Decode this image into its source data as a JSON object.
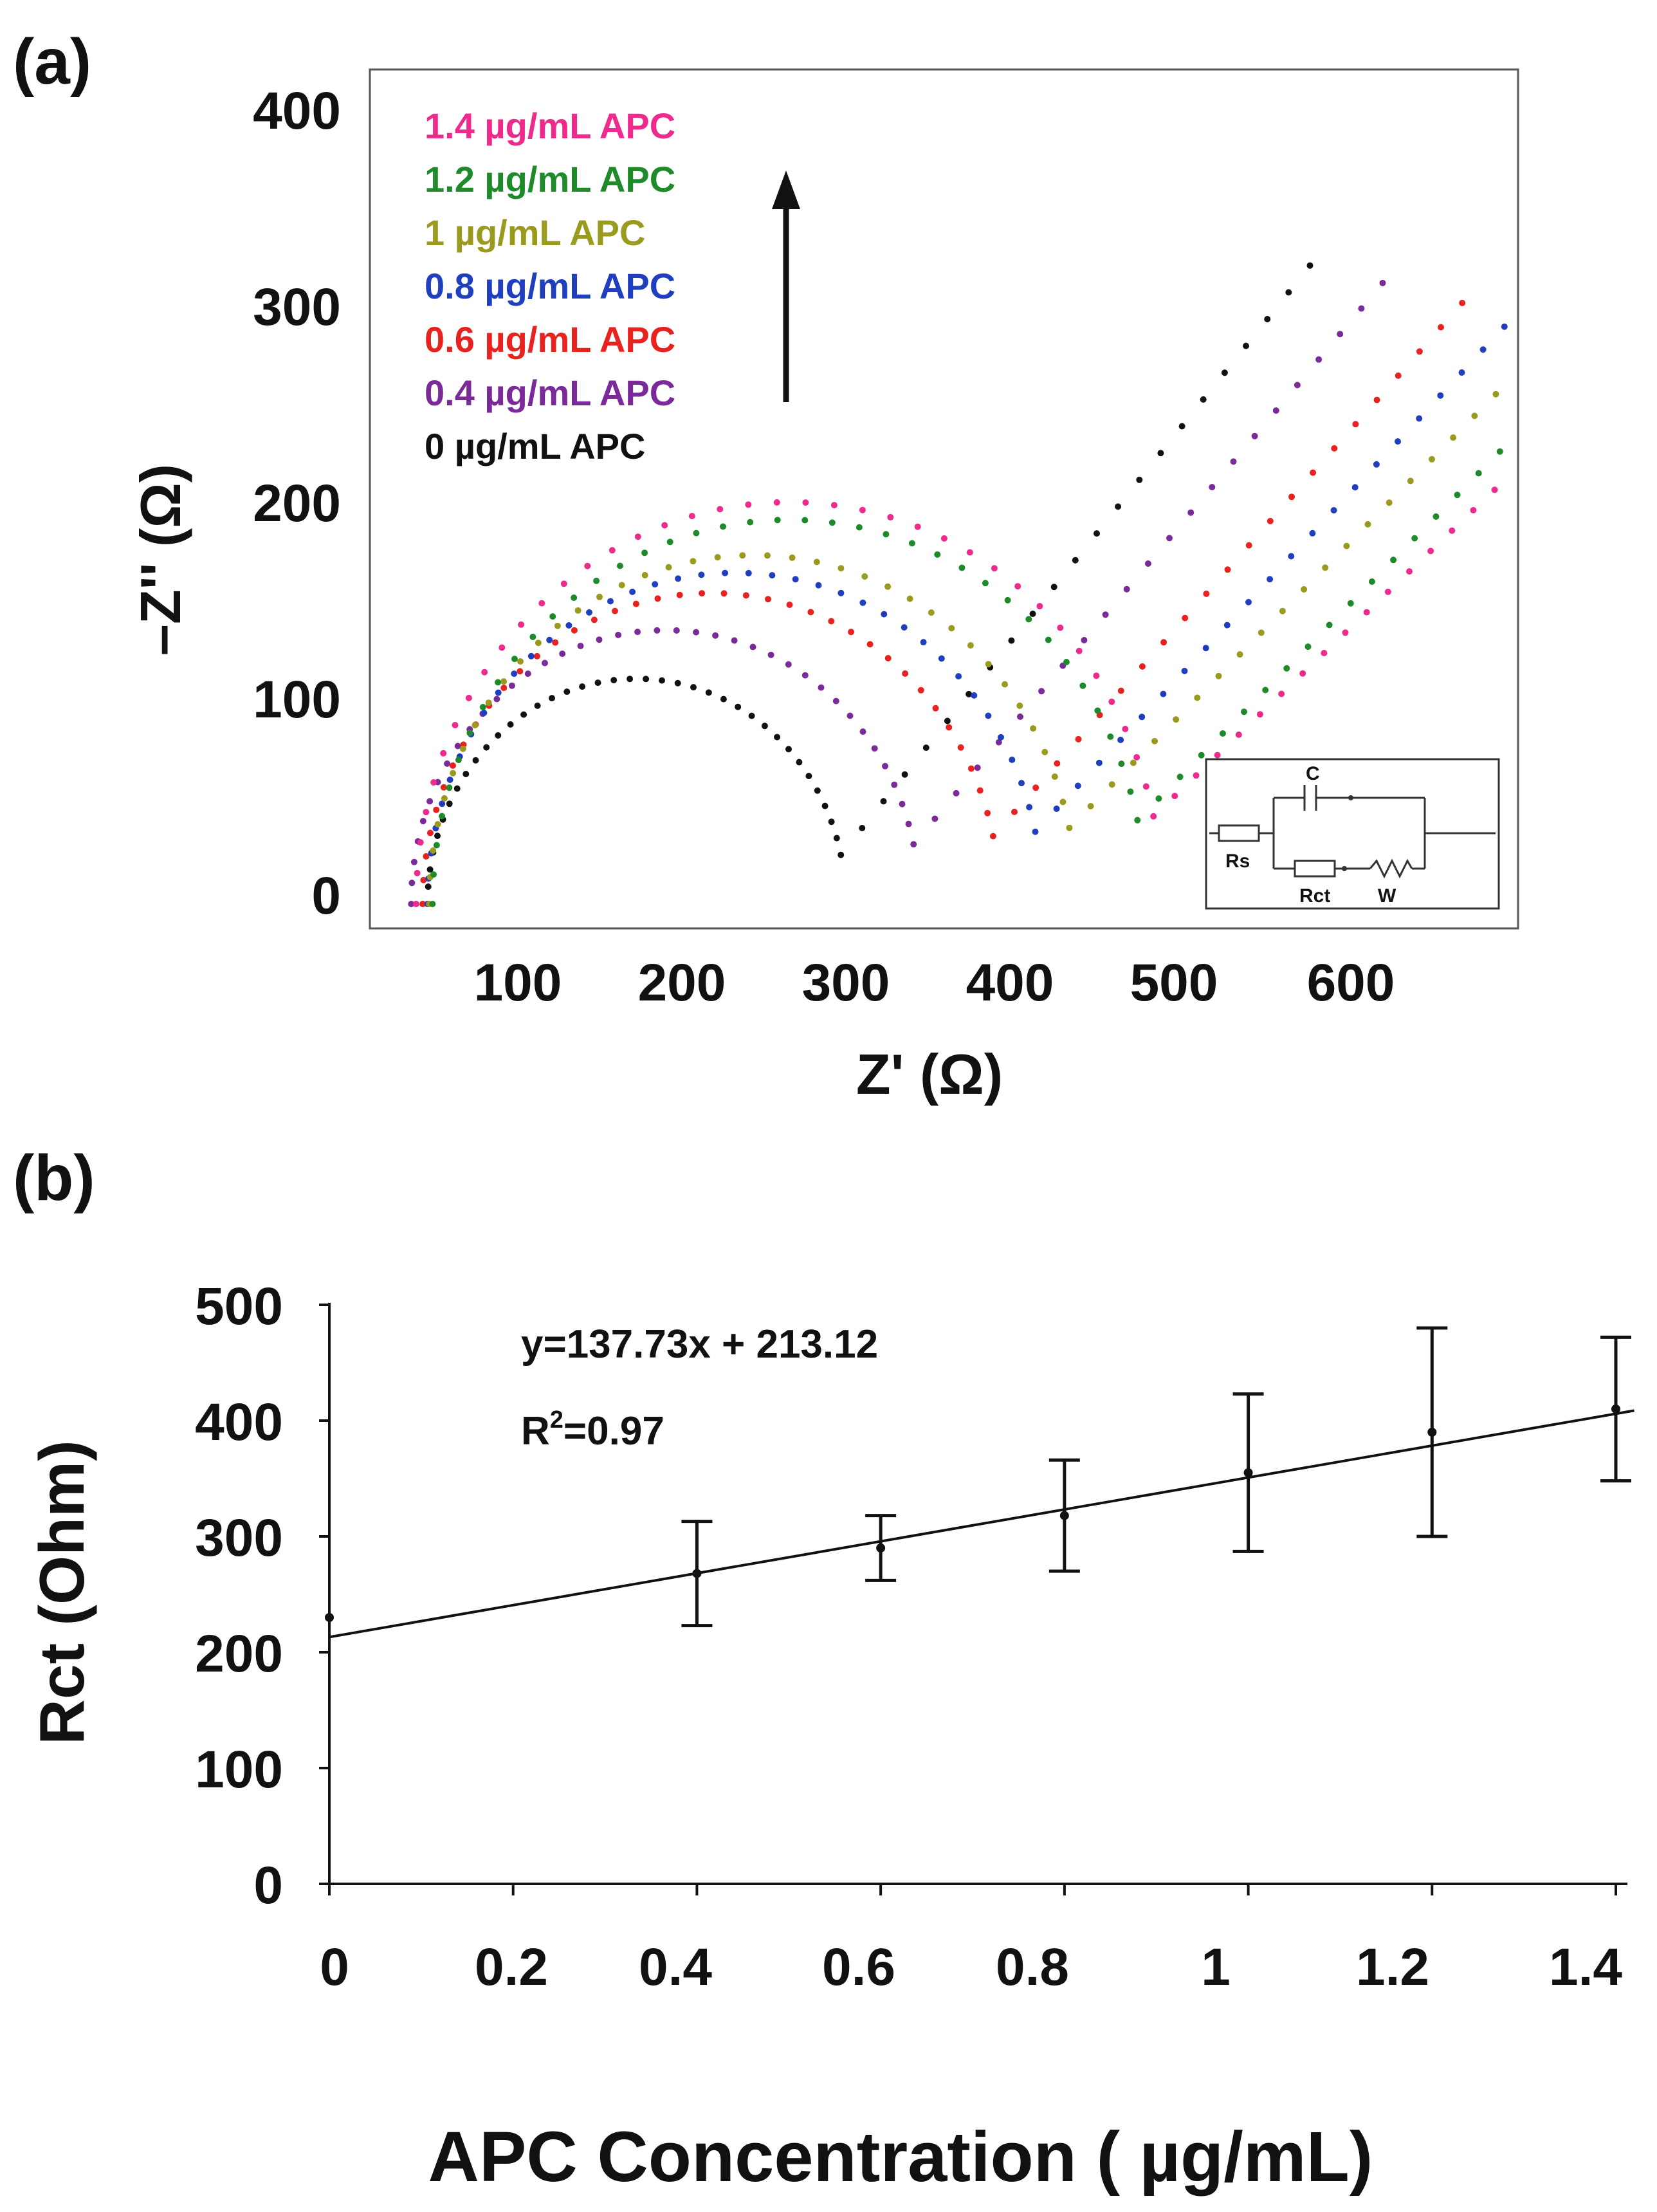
{
  "chart_data": [
    {
      "panel": "(a)",
      "type": "scatter",
      "title": "",
      "xlabel": "Z' (Ω)",
      "ylabel": "–Z'' (Ω)",
      "xlim": [
        25,
        690
      ],
      "ylim": [
        -10,
        410
      ],
      "xticks": [
        "100",
        "200",
        "300",
        "400",
        "500",
        "600"
      ],
      "yticks": [
        "0",
        "100",
        "200",
        "300",
        "400"
      ],
      "legend_order_top_to_bottom": [
        "1.4 µg/mL APC",
        "1.2 µg/mL APC",
        "1 µg/mL APC",
        "0.8 µg/mL APC",
        "0.6 µg/mL APC",
        "0.4 µg/mL APC",
        "0 µg/mL APC"
      ],
      "series": [
        {
          "name": "0 µg/mL APC",
          "color": "#111111",
          "Rs": 45,
          "Rct": 255,
          "tail_slope": 1.05
        },
        {
          "name": "0.4 µg/mL APC",
          "color": "#7b2a9a",
          "Rs": 35,
          "Rct": 310,
          "tail_slope": 1.0
        },
        {
          "name": "0.6 µg/mL APC",
          "color": "#e8231f",
          "Rs": 42,
          "Rct": 352,
          "tail_slope": 0.95
        },
        {
          "name": "0.8 µg/mL APC",
          "color": "#1f3fbf",
          "Rs": 45,
          "Rct": 375,
          "tail_slope": 0.9
        },
        {
          "name": "1 µg/mL APC",
          "color": "#9a9a1e",
          "Rs": 46,
          "Rct": 395,
          "tail_slope": 0.85
        },
        {
          "name": "1.2 µg/mL APC",
          "color": "#1e8a2a",
          "Rs": 48,
          "Rct": 435,
          "tail_slope": 0.85
        },
        {
          "name": "1.4 µg/mL APC",
          "color": "#ee2b8c",
          "Rs": 38,
          "Rct": 455,
          "tail_slope": 0.8
        }
      ],
      "inset_circuit_labels": {
        "c": "C",
        "rs": "Rs",
        "rct": "Rct",
        "w": "W"
      }
    },
    {
      "panel": "(b)",
      "type": "scatter",
      "title": "",
      "xlabel": "APC Concentration ( µg/mL)",
      "ylabel": "Rct (Ohm)",
      "xlim": [
        0,
        1.42
      ],
      "ylim": [
        0,
        500
      ],
      "xticks": [
        "0",
        "0.2",
        "0.4",
        "0.6",
        "0.8",
        "1",
        "1.2",
        "1.4"
      ],
      "yticks": [
        "0",
        "100",
        "200",
        "300",
        "400",
        "500"
      ],
      "x": [
        0,
        0.4,
        0.6,
        0.8,
        1.0,
        1.2,
        1.4
      ],
      "y": [
        230,
        268,
        290,
        318,
        355,
        390,
        410
      ],
      "error": [
        0,
        45,
        28,
        48,
        68,
        90,
        62
      ],
      "fit": {
        "slope": 137.73,
        "intercept": 213.12
      },
      "equation": "y=137.73x + 213.12",
      "r2_prefix": "R",
      "r2_sup": "2",
      "r2_value": "=0.97"
    }
  ]
}
